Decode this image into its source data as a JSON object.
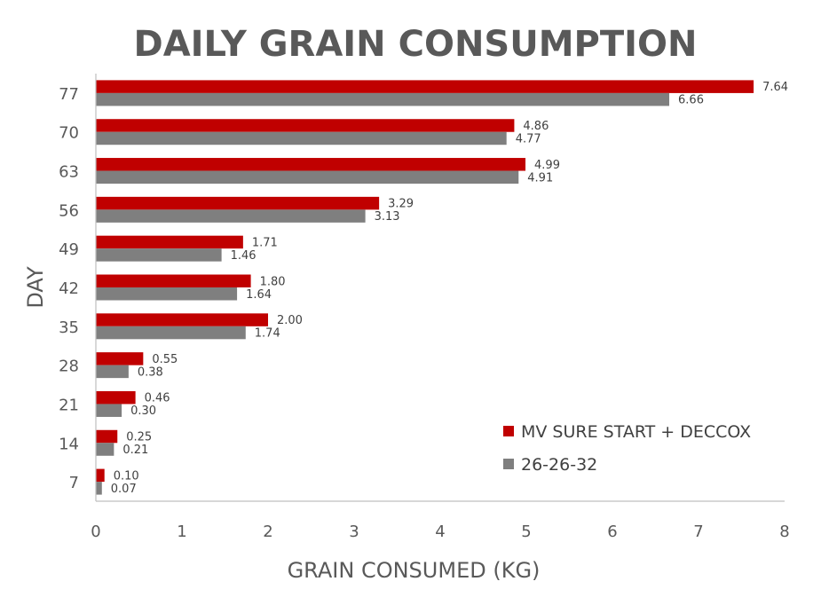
{
  "chart_data": {
    "type": "bar",
    "orientation": "horizontal",
    "title": "DAILY GRAIN CONSUMPTION",
    "xlabel": "GRAIN CONSUMED (KG)",
    "ylabel": "DAY",
    "xlim": [
      0,
      8
    ],
    "x_ticks": [
      "0",
      "1",
      "2",
      "3",
      "4",
      "5",
      "6",
      "7",
      "8"
    ],
    "grid": false,
    "legend_position": "bottom-right",
    "categories": [
      "7",
      "14",
      "21",
      "28",
      "35",
      "42",
      "49",
      "56",
      "63",
      "70",
      "77"
    ],
    "series": [
      {
        "name": "MV SURE START + DECCOX",
        "color": "#C00000",
        "values": [
          0.1,
          0.25,
          0.46,
          0.55,
          2.0,
          1.8,
          1.71,
          3.29,
          4.99,
          4.86,
          7.64
        ],
        "labels": [
          "0.10",
          "0.25",
          "0.46",
          "0.55",
          "2.00",
          "1.80",
          "1.71",
          "3.29",
          "4.99",
          "4.86",
          "7.64"
        ]
      },
      {
        "name": "26-26-32",
        "color": "#7F7F7F",
        "values": [
          0.07,
          0.21,
          0.3,
          0.38,
          1.74,
          1.64,
          1.46,
          3.13,
          4.91,
          4.77,
          6.66
        ],
        "labels": [
          "0.07",
          "0.21",
          "0.30",
          "0.38",
          "1.74",
          "1.64",
          "1.46",
          "3.13",
          "4.91",
          "4.77",
          "6.66"
        ]
      }
    ]
  }
}
